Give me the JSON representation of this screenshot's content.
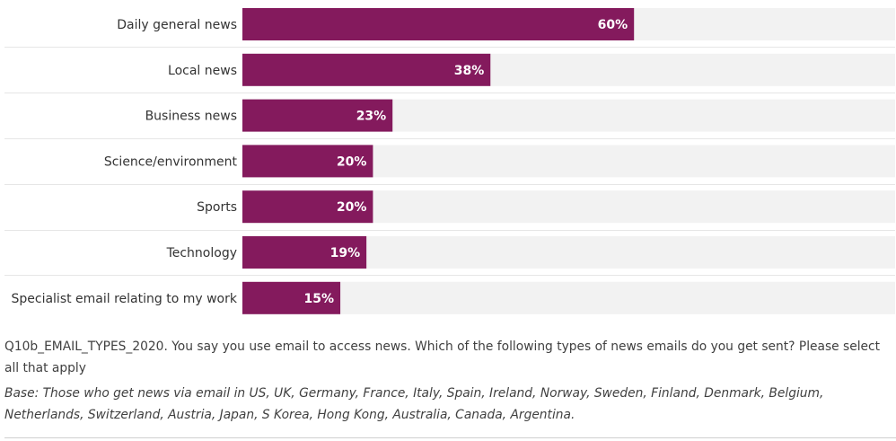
{
  "chart_data": {
    "type": "bar",
    "orientation": "horizontal",
    "categories": [
      "Daily general news",
      "Local news",
      "Business news",
      "Science/environment",
      "Sports",
      "Technology",
      "Specialist email relating to my work"
    ],
    "values": [
      60,
      38,
      23,
      20,
      20,
      19,
      15
    ],
    "value_labels": [
      "60%",
      "38%",
      "23%",
      "20%",
      "20%",
      "19%",
      "15%"
    ],
    "xlim": [
      0,
      100
    ],
    "bar_color": "#841a5d",
    "track_color": "#f2f2f2"
  },
  "notes": {
    "question": "Q10b_EMAIL_TYPES_2020. You say you use email to access news. Which of the following types of news emails do you get sent? Please select all that apply",
    "base": "Base: Those who get news via email in US, UK, Germany, France, Italy, Spain, Ireland, Norway, Sweden, Finland, Denmark, Belgium, Netherlands, Switzerland, Austria, Japan, S Korea, Hong Kong, Australia, Canada, Argentina."
  }
}
